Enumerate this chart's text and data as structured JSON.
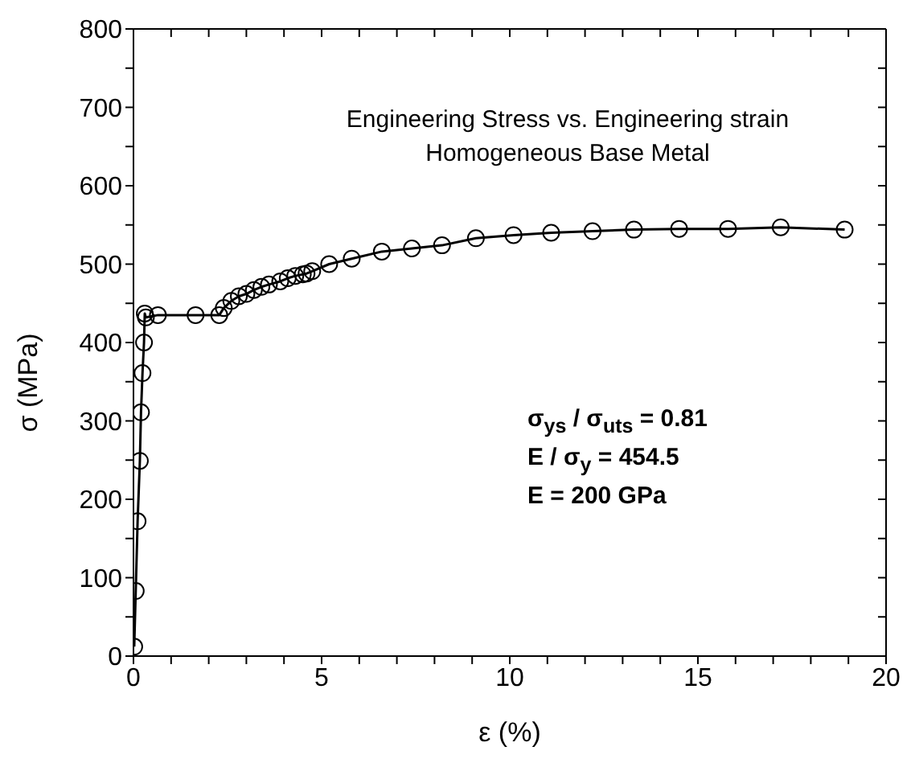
{
  "chart_data": {
    "type": "line",
    "title": "Engineering Stress vs. Engineering strain",
    "subtitle": "Homogeneous Base Metal",
    "xlabel": "ε (%)",
    "ylabel": "σ (MPa)",
    "annotations": [
      "σ$_{ys}$ / σ$_{uts}$ = 0.81",
      "E / σ$_{y}$ = 454.5",
      "E = 200 GPa"
    ],
    "x": [
      0.02,
      0.06,
      0.11,
      0.17,
      0.2,
      0.24,
      0.28,
      0.3,
      0.33,
      0.65,
      1.65,
      2.28,
      2.4,
      2.6,
      2.8,
      3.0,
      3.2,
      3.4,
      3.6,
      3.9,
      4.1,
      4.3,
      4.5,
      4.6,
      4.75,
      5.2,
      5.8,
      6.6,
      7.4,
      8.2,
      9.1,
      10.1,
      11.1,
      12.2,
      13.3,
      14.5,
      15.8,
      17.2,
      18.9
    ],
    "series": [
      {
        "color": "#000000",
        "values": [
          12,
          83,
          172,
          249,
          311,
          361,
          400,
          437,
          432,
          435,
          435,
          435,
          444,
          453,
          459,
          462,
          467,
          471,
          474,
          478,
          482,
          485,
          487,
          488,
          491,
          500,
          507,
          516,
          520,
          524,
          533,
          537,
          540,
          542,
          544,
          545,
          545,
          547,
          544
        ]
      }
    ],
    "xlim": [
      0,
      20
    ],
    "xticks": [
      0,
      {
        "value": 1,
        "label": null
      },
      {
        "value": 2,
        "label": null
      },
      {
        "value": 3,
        "label": null
      },
      {
        "value": 4,
        "label": null
      },
      5,
      {
        "value": 6,
        "label": null
      },
      {
        "value": 7,
        "label": null
      },
      {
        "value": 8,
        "label": null
      },
      {
        "value": 9,
        "label": null
      },
      10,
      {
        "value": 11,
        "label": null
      },
      {
        "value": 12,
        "label": null
      },
      {
        "value": 13,
        "label": null
      },
      {
        "value": 14,
        "label": null
      },
      15,
      {
        "value": 16,
        "label": null
      },
      {
        "value": 17,
        "label": null
      },
      {
        "value": 18,
        "label": null
      },
      {
        "value": 19,
        "label": null
      },
      20
    ],
    "ylim": [
      0,
      800
    ],
    "yticks": [
      0,
      {
        "value": 50,
        "label": null
      },
      100,
      {
        "value": 150,
        "label": null
      },
      200,
      {
        "value": 250,
        "label": null
      },
      300,
      {
        "value": 350,
        "label": null
      },
      400,
      {
        "value": 450,
        "label": null
      },
      500,
      {
        "value": 550,
        "label": null
      },
      600,
      {
        "value": 650,
        "label": null
      },
      700,
      {
        "value": 750,
        "label": null
      },
      800
    ],
    "marker": "circle",
    "line_style": "solid",
    "grid": false,
    "legend": false
  }
}
